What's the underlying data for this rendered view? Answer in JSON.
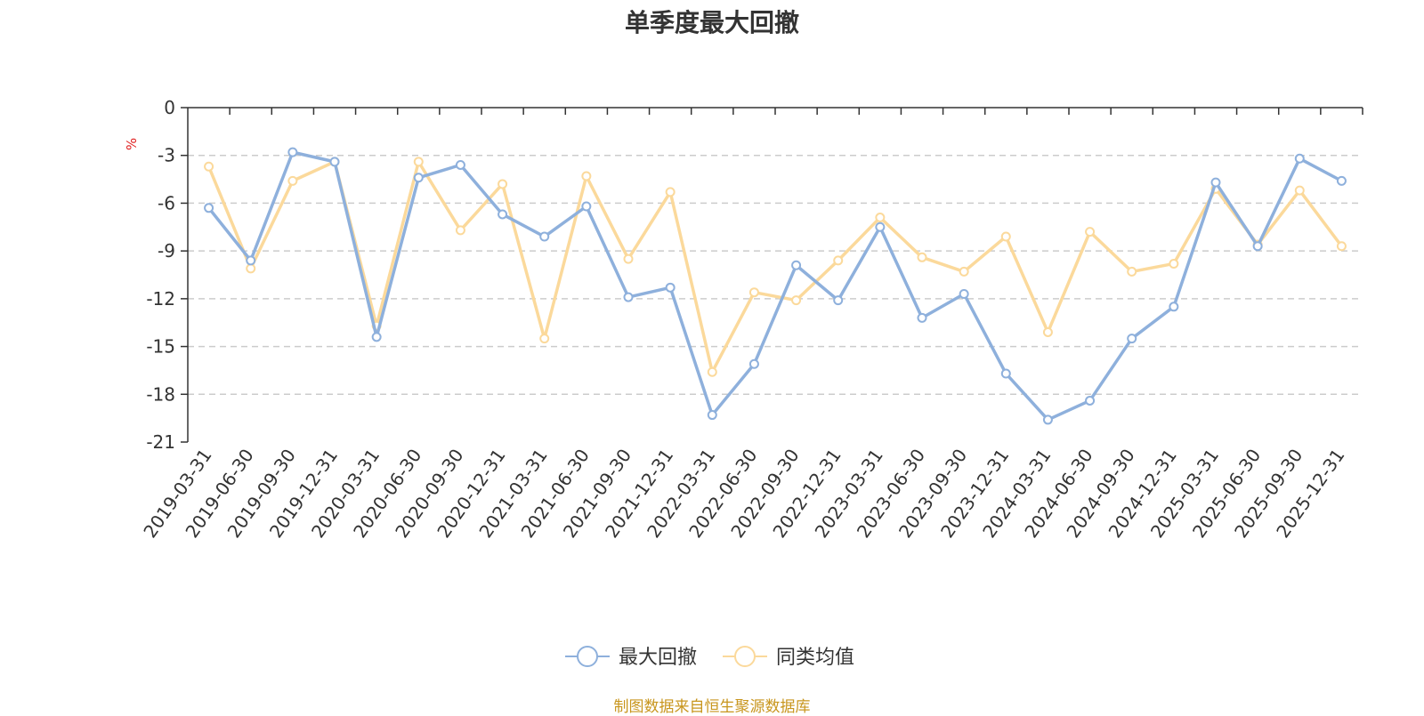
{
  "chart_data": {
    "type": "line",
    "title": "单季度最大回撤",
    "ylabel": "%",
    "xlabel": "",
    "ylim": [
      -21,
      0
    ],
    "yticks": [
      0,
      -3,
      -6,
      -9,
      -12,
      -15,
      -18,
      -21
    ],
    "grid": true,
    "legend_position": "bottom",
    "categories": [
      "2019-03-31",
      "2019-06-30",
      "2019-09-30",
      "2019-12-31",
      "2020-03-31",
      "2020-06-30",
      "2020-09-30",
      "2020-12-31",
      "2021-03-31",
      "2021-06-30",
      "2021-09-30",
      "2021-12-31",
      "2022-03-31",
      "2022-06-30",
      "2022-09-30",
      "2022-12-31",
      "2023-03-31",
      "2023-06-30",
      "2023-09-30",
      "2023-12-31",
      "2024-03-31",
      "2024-06-30",
      "2024-09-30",
      "2024-12-31",
      "2025-03-31",
      "2025-06-30",
      "2025-09-30",
      "2025-12-31"
    ],
    "series": [
      {
        "name": "最大回撤",
        "color": "#8eb0dc",
        "values": [
          -6.3,
          -9.6,
          -2.8,
          -3.4,
          -14.4,
          -4.4,
          -3.6,
          -6.7,
          -8.1,
          -6.2,
          -11.9,
          -11.3,
          -19.3,
          -16.1,
          -9.9,
          -12.1,
          -7.5,
          -13.2,
          -11.7,
          -16.7,
          -19.6,
          -18.4,
          -14.5,
          -12.5,
          -4.7,
          -8.7,
          -3.2,
          -4.6
        ]
      },
      {
        "name": "同类均值",
        "color": "#fbd99b",
        "values": [
          -3.7,
          -10.1,
          -4.6,
          -3.4,
          -13.7,
          -3.4,
          -7.7,
          -4.8,
          -14.5,
          -4.3,
          -9.5,
          -5.3,
          -16.6,
          -11.6,
          -12.1,
          -9.6,
          -6.9,
          -9.4,
          -10.3,
          -8.1,
          -14.1,
          -7.8,
          -10.3,
          -9.8,
          -5.1,
          -8.6,
          -5.2,
          -8.7
        ]
      }
    ]
  },
  "source_note": "制图数据来自恒生聚源数据库"
}
